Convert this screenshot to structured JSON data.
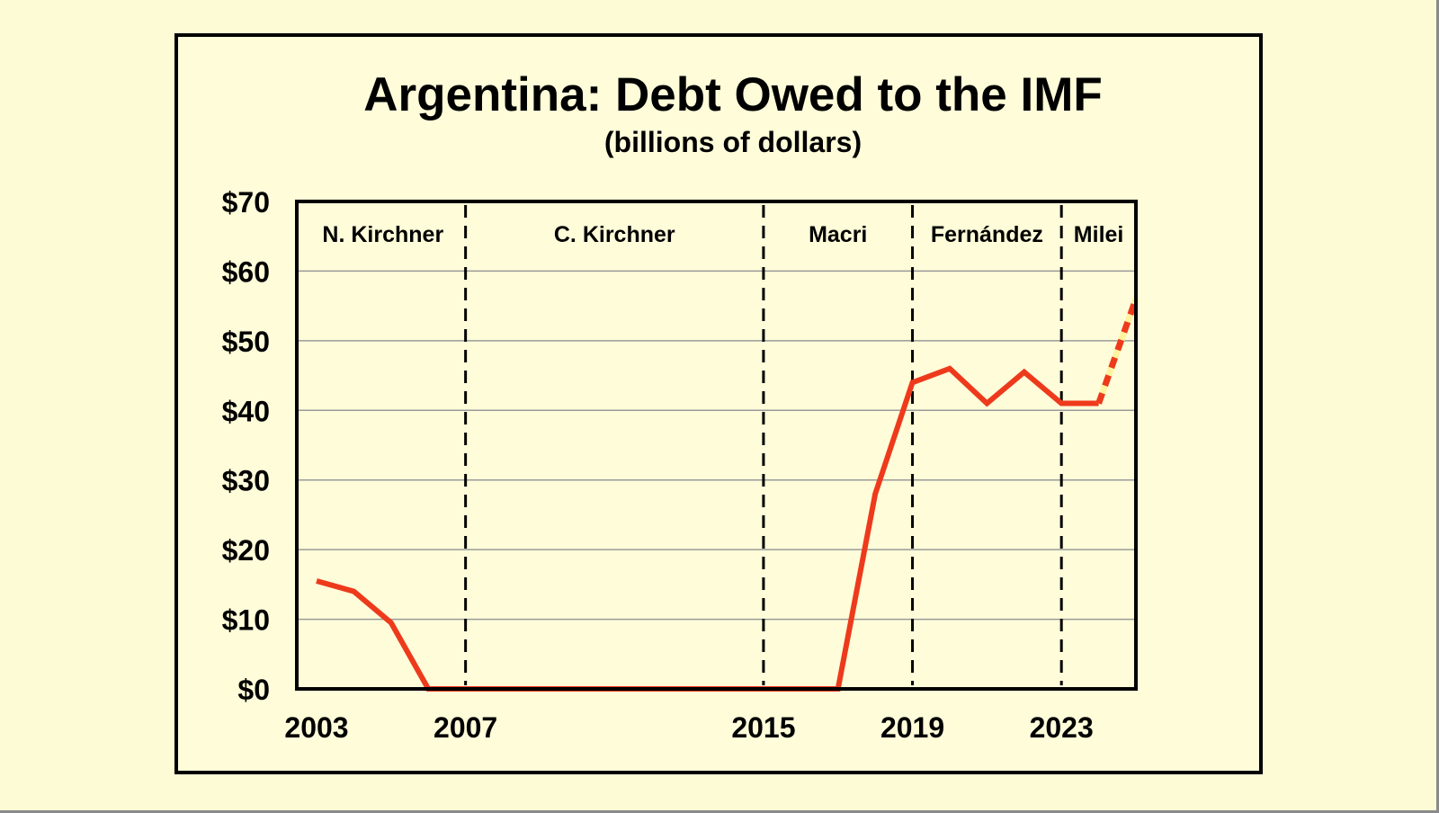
{
  "chart_data": {
    "type": "line",
    "title": "Argentina: Debt Owed to the IMF",
    "subtitle": "(billions of dollars)",
    "xlabel": "",
    "ylabel": "",
    "ylim": [
      0,
      70
    ],
    "xlim": [
      2003,
      2025
    ],
    "grid": true,
    "y_ticks": [
      {
        "value": 0,
        "label": "$0"
      },
      {
        "value": 10,
        "label": "$10"
      },
      {
        "value": 20,
        "label": "$20"
      },
      {
        "value": 30,
        "label": "$30"
      },
      {
        "value": 40,
        "label": "$40"
      },
      {
        "value": 50,
        "label": "$50"
      },
      {
        "value": 60,
        "label": "$60"
      },
      {
        "value": 70,
        "label": "$70"
      }
    ],
    "x_ticks": [
      {
        "value": 2003,
        "label": "2003"
      },
      {
        "value": 2007,
        "label": "2007"
      },
      {
        "value": 2015,
        "label": "2015"
      },
      {
        "value": 2019,
        "label": "2019"
      },
      {
        "value": 2023,
        "label": "2023"
      }
    ],
    "eras": [
      {
        "label": "N. Kirchner",
        "start": 2003,
        "end": 2007
      },
      {
        "label": "C. Kirchner",
        "start": 2007,
        "end": 2015
      },
      {
        "label": "Macri",
        "start": 2015,
        "end": 2019
      },
      {
        "label": "Fernández",
        "start": 2019,
        "end": 2023
      },
      {
        "label": "Milei",
        "start": 2023,
        "end": 2025
      }
    ],
    "series": [
      {
        "name": "Debt owed to IMF",
        "color": "#ee3a1c",
        "style": "solid",
        "x": [
          2003,
          2004,
          2005,
          2006,
          2007,
          2008,
          2009,
          2010,
          2011,
          2012,
          2013,
          2014,
          2015,
          2016,
          2017,
          2018,
          2019,
          2020,
          2021,
          2022,
          2023,
          2024
        ],
        "values": [
          15.5,
          14,
          9.5,
          0,
          0,
          0,
          0,
          0,
          0,
          0,
          0,
          0,
          0,
          0,
          0,
          28,
          44,
          46,
          41,
          45.5,
          41,
          41
        ]
      },
      {
        "name": "Projected",
        "color": "#ee3a1c",
        "alt_color": "#fff3a0",
        "style": "dashed",
        "x": [
          2024,
          2025
        ],
        "values": [
          41,
          56
        ]
      }
    ]
  }
}
